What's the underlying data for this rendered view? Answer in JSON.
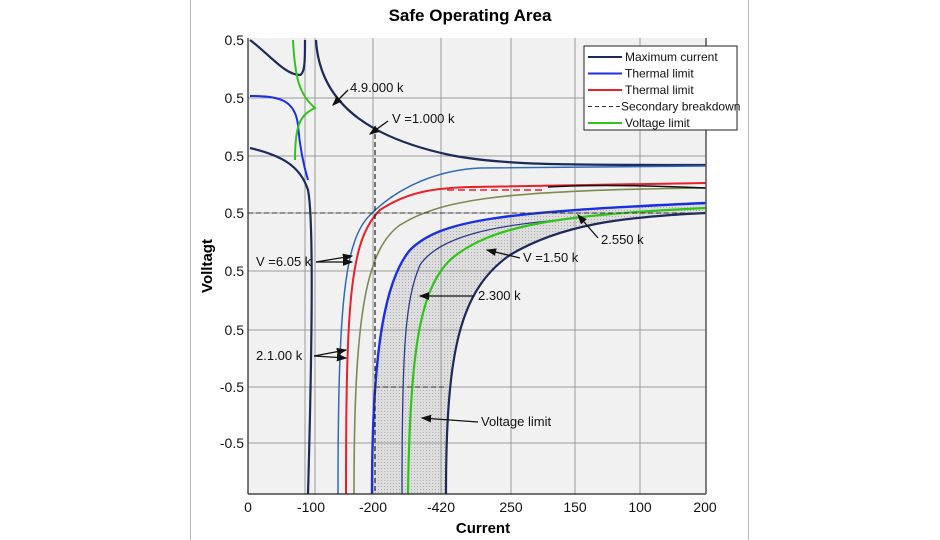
{
  "chart_data": {
    "type": "line",
    "title": "Safe Operating Area",
    "xlabel": "Current",
    "ylabel": "Volltagt",
    "x_tick_labels": [
      "0",
      "-100",
      "-200",
      "-420",
      "250",
      "150",
      "100",
      "200"
    ],
    "y_tick_labels": [
      "0.5",
      "0.5",
      "0.5",
      "0.5",
      "0.5",
      "0.5",
      "-0.5",
      "-0.5"
    ],
    "grid": true,
    "legend_position": "top-right",
    "series": [
      {
        "name": "Maximum current",
        "color": "#1c2a5a",
        "style": "solid"
      },
      {
        "name": "Thermal limit",
        "color": "#1a2fe0",
        "style": "solid"
      },
      {
        "name": "Thermal limit",
        "color": "#e8202a",
        "style": "solid"
      },
      {
        "name": "Secondary breakdown",
        "color": "#333333",
        "style": "dashed"
      },
      {
        "name": "Voltage limit",
        "color": "#2fc41a",
        "style": "solid"
      }
    ],
    "annotations": [
      "4.9.000 k",
      "V =1.000 k",
      "V =6.05 k",
      "2.1.00 k",
      "2.550 k",
      "V =1.50 k",
      "2.300 k",
      "Voltage limit"
    ]
  }
}
